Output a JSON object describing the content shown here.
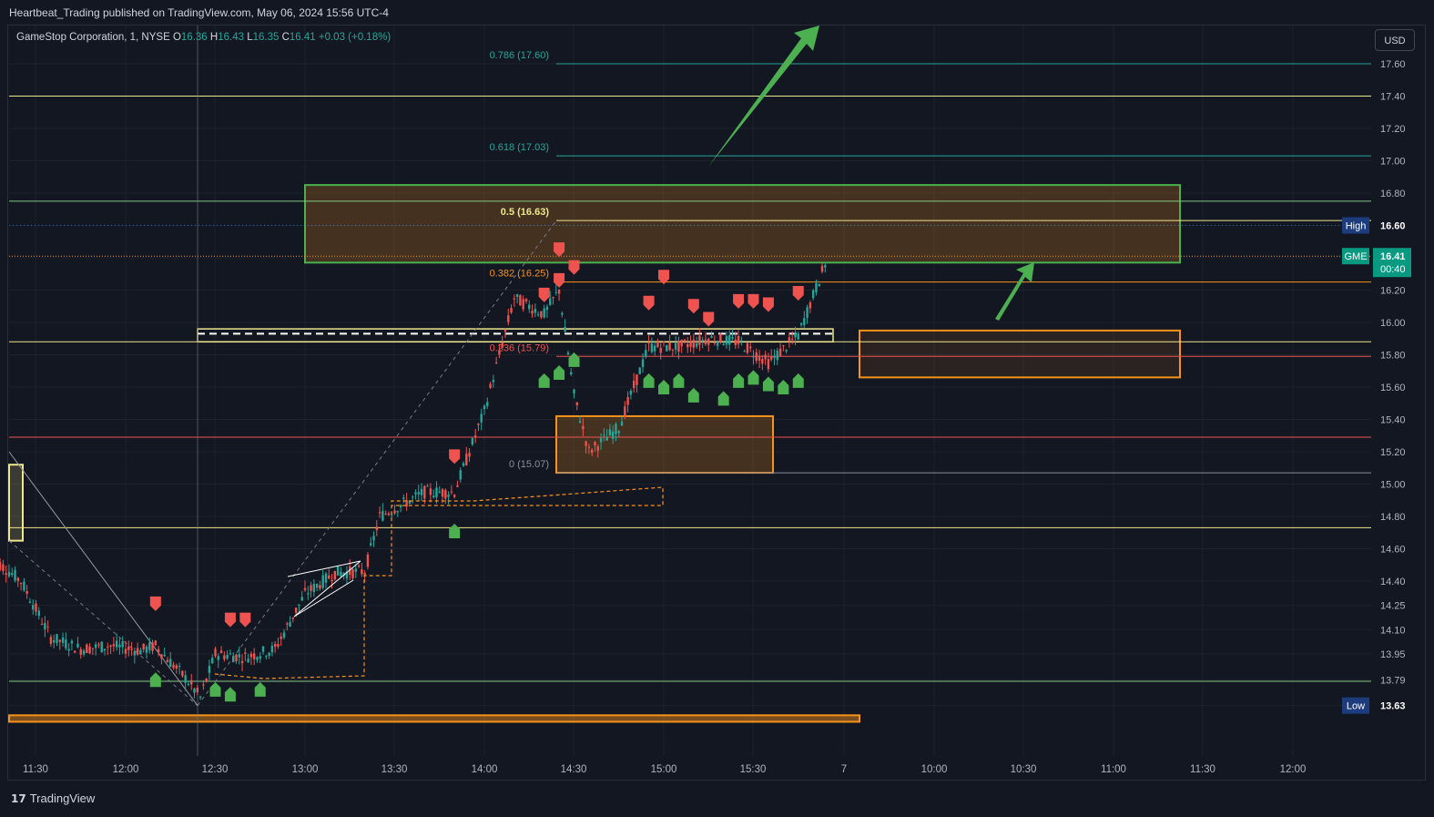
{
  "header": {
    "published": "Heartbeat_Trading published on TradingView.com, May 06, 2024 15:56 UTC-4"
  },
  "legend": {
    "symbol": "GameStop Corporation, 1, NYSE",
    "o_label": "O",
    "o_value": "16.36",
    "h_label": "H",
    "h_value": "16.43",
    "l_label": "L",
    "l_value": "16.35",
    "c_label": "C",
    "c_value": "16.41",
    "change": "+0.03 (+0.18%)"
  },
  "currency_button": "USD",
  "footer": {
    "logo_text": "TradingView",
    "logo_mark": "17"
  },
  "colors": {
    "background": "#131722",
    "up": "#26a69a",
    "down": "#ef5350",
    "yellow_line": "#f0e68c",
    "green_line": "#81c784",
    "red_line": "#ef5350",
    "zone_orange": "#f7931a",
    "zone_green": "#4caf50",
    "fib_green": "#26a69a"
  },
  "chart_data": {
    "type": "candlestick",
    "symbol": "GME",
    "timeframe": "1",
    "x_ticks": [
      "11:30",
      "12:00",
      "12:30",
      "13:00",
      "13:30",
      "14:00",
      "14:30",
      "15:00",
      "15:30",
      "7",
      "10:00",
      "10:30",
      "11:00",
      "11:30",
      "12:00"
    ],
    "y_ticks": [
      "17.60",
      "17.40",
      "17.20",
      "17.00",
      "16.80",
      "16.60",
      "16.40",
      "16.20",
      "16.00",
      "15.80",
      "15.60",
      "15.40",
      "15.20",
      "15.00",
      "14.80",
      "14.60",
      "14.40",
      "14.25",
      "14.10",
      "13.95",
      "13.79",
      "13.63"
    ],
    "ylim": [
      13.55,
      17.85
    ],
    "session_points": [
      {
        "t": "11:15",
        "price": 14.55
      },
      {
        "t": "11:25",
        "price": 14.4
      },
      {
        "t": "11:35",
        "price": 14.05
      },
      {
        "t": "11:45",
        "price": 13.98
      },
      {
        "t": "11:55",
        "price": 14.0
      },
      {
        "t": "12:05",
        "price": 13.97
      },
      {
        "t": "12:10",
        "price": 14.0
      },
      {
        "t": "12:20",
        "price": 13.8
      },
      {
        "t": "12:25",
        "price": 13.68
      },
      {
        "t": "12:30",
        "price": 13.95
      },
      {
        "t": "12:40",
        "price": 13.93
      },
      {
        "t": "12:50",
        "price": 13.98
      },
      {
        "t": "13:00",
        "price": 14.32
      },
      {
        "t": "13:10",
        "price": 14.45
      },
      {
        "t": "13:20",
        "price": 14.46
      },
      {
        "t": "13:25",
        "price": 14.8
      },
      {
        "t": "13:40",
        "price": 14.95
      },
      {
        "t": "13:50",
        "price": 14.95
      },
      {
        "t": "14:00",
        "price": 15.45
      },
      {
        "t": "14:10",
        "price": 16.15
      },
      {
        "t": "14:20",
        "price": 16.05
      },
      {
        "t": "14:25",
        "price": 16.2
      },
      {
        "t": "14:30",
        "price": 15.55
      },
      {
        "t": "14:35",
        "price": 15.2
      },
      {
        "t": "14:45",
        "price": 15.35
      },
      {
        "t": "14:55",
        "price": 15.85
      },
      {
        "t": "15:05",
        "price": 15.85
      },
      {
        "t": "15:15",
        "price": 15.9
      },
      {
        "t": "15:25",
        "price": 15.88
      },
      {
        "t": "15:35",
        "price": 15.75
      },
      {
        "t": "15:45",
        "price": 15.92
      },
      {
        "t": "15:55",
        "price": 16.41
      }
    ],
    "fibonacci": [
      {
        "level": "0.786",
        "price": 17.6,
        "label": "0.786 (17.60)"
      },
      {
        "level": "0.618",
        "price": 17.03,
        "label": "0.618 (17.03)"
      },
      {
        "level": "0.5",
        "price": 16.63,
        "label": "0.5 (16.63)"
      },
      {
        "level": "0.382",
        "price": 16.25,
        "label": "0.382 (16.25)"
      },
      {
        "level": "0.236",
        "price": 15.79,
        "label": "0.236 (15.79)"
      },
      {
        "level": "0",
        "price": 15.07,
        "label": "0 (15.07)"
      }
    ],
    "horizontal_lines": [
      {
        "price": 17.4,
        "color": "yellow"
      },
      {
        "price": 16.75,
        "color": "green"
      },
      {
        "price": 15.88,
        "color": "yellow"
      },
      {
        "price": 15.29,
        "color": "red"
      },
      {
        "price": 14.73,
        "color": "yellow"
      },
      {
        "price": 13.78,
        "color": "green"
      }
    ],
    "zones": [
      {
        "from": "14:00",
        "to": "10:55",
        "low": 16.37,
        "high": 16.85,
        "color": "green"
      },
      {
        "from": "15:10",
        "to": "10:55",
        "low": 15.66,
        "high": 15.95,
        "color": "orange"
      },
      {
        "from": "14:25",
        "to": "15:35",
        "low": 15.07,
        "high": 15.42,
        "color": "orange"
      },
      {
        "from": "11:15",
        "to": "15:55",
        "low": 13.53,
        "high": 13.57,
        "color": "orange"
      },
      {
        "from": "11:15",
        "to": "11:15",
        "low": 14.65,
        "high": 15.12,
        "color": "yellow"
      }
    ],
    "markers_sell": [
      {
        "t": "12:10",
        "price": 14.26
      },
      {
        "t": "12:35",
        "price": 14.16
      },
      {
        "t": "12:40",
        "price": 14.16
      },
      {
        "t": "13:50",
        "price": 15.17
      },
      {
        "t": "14:25",
        "price": 16.45
      },
      {
        "t": "14:20",
        "price": 16.17
      },
      {
        "t": "14:25",
        "price": 16.26
      },
      {
        "t": "14:30",
        "price": 16.34
      },
      {
        "t": "14:55",
        "price": 16.12
      },
      {
        "t": "15:00",
        "price": 16.28
      },
      {
        "t": "15:10",
        "price": 16.1
      },
      {
        "t": "15:15",
        "price": 16.02
      },
      {
        "t": "15:25",
        "price": 16.13
      },
      {
        "t": "15:30",
        "price": 16.13
      },
      {
        "t": "15:35",
        "price": 16.11
      },
      {
        "t": "15:45",
        "price": 16.18
      }
    ],
    "markers_buy": [
      {
        "t": "12:10",
        "price": 13.79
      },
      {
        "t": "12:30",
        "price": 13.73
      },
      {
        "t": "12:35",
        "price": 13.7
      },
      {
        "t": "12:45",
        "price": 13.73
      },
      {
        "t": "13:50",
        "price": 14.71
      },
      {
        "t": "14:20",
        "price": 15.64
      },
      {
        "t": "14:25",
        "price": 15.69
      },
      {
        "t": "14:30",
        "price": 15.77
      },
      {
        "t": "14:55",
        "price": 15.64
      },
      {
        "t": "15:00",
        "price": 15.6
      },
      {
        "t": "15:05",
        "price": 15.64
      },
      {
        "t": "15:10",
        "price": 15.55
      },
      {
        "t": "15:20",
        "price": 15.53
      },
      {
        "t": "15:25",
        "price": 15.64
      },
      {
        "t": "15:30",
        "price": 15.66
      },
      {
        "t": "15:35",
        "price": 15.62
      },
      {
        "t": "15:40",
        "price": 15.6
      },
      {
        "t": "15:45",
        "price": 15.64
      }
    ],
    "price_labels": [
      {
        "name": "High",
        "value": "16.60",
        "price": 16.6
      },
      {
        "name": "GME",
        "value": "16.41",
        "sub": "00:40",
        "price": 16.41
      },
      {
        "name": "Low",
        "value": "13.63",
        "price": 13.63
      }
    ]
  }
}
